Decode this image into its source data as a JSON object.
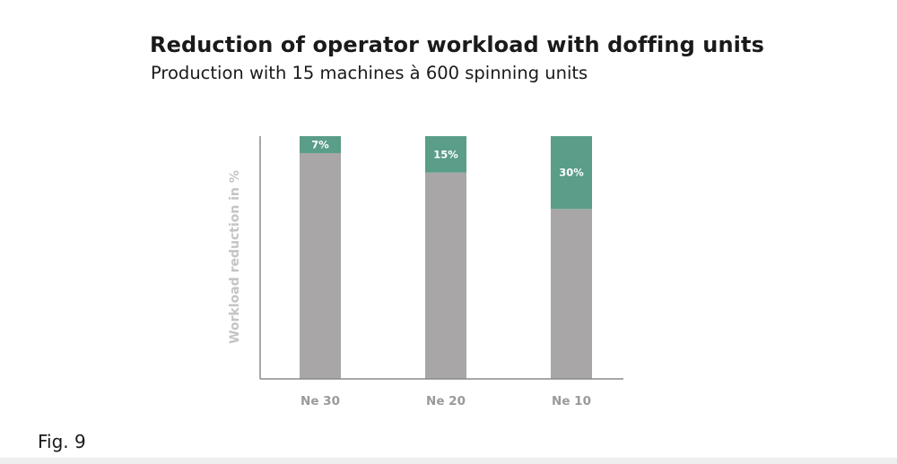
{
  "header": {
    "title": "Reduction of operator workload with doffing units",
    "subtitle": "Production with 15 machines à 600 spinning units"
  },
  "footer": {
    "figure_label": "Fig. 9"
  },
  "colors": {
    "base_bar": "#a9a6a7",
    "reduction_bar": "#5a9d89",
    "axis": "#8a8a8a"
  },
  "chart_data": {
    "type": "bar",
    "stacked": true,
    "categories": [
      "Ne 30",
      "Ne 20",
      "Ne 10"
    ],
    "series": [
      {
        "values": [
          93,
          85,
          70
        ]
      },
      {
        "values": [
          7,
          15,
          30
        ],
        "data_labels": [
          "7%",
          "15%",
          "30%"
        ]
      }
    ],
    "title": "Reduction of operator workload with doffing units",
    "subtitle": "Production with 15 machines à 600 spinning units",
    "xlabel": "",
    "ylabel": "Workload reduction in %",
    "ylim": [
      0,
      100
    ],
    "grid": false,
    "legend": "none"
  }
}
